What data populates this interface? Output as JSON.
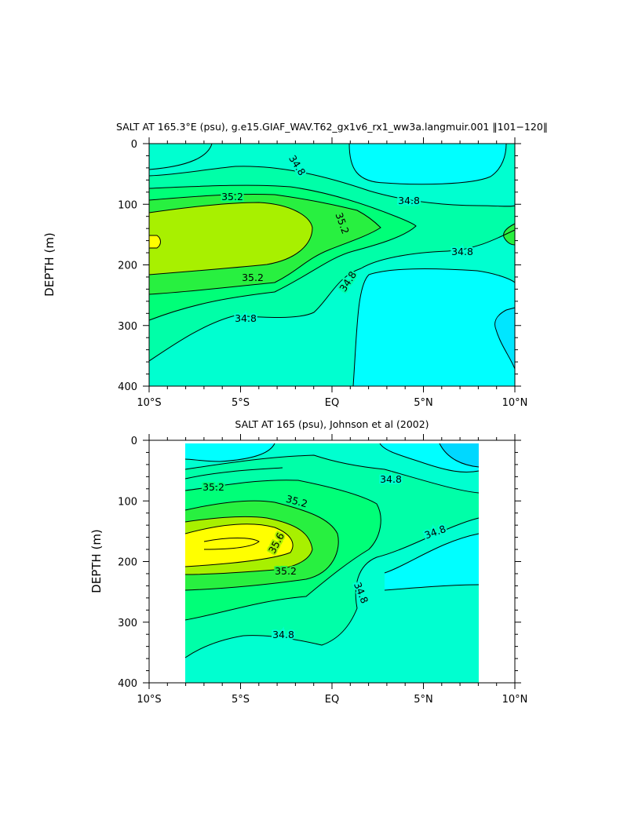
{
  "colors": {
    "s34_4": "#00ffff",
    "s34_6": "#00ffd0",
    "s34_8": "#00ffa8",
    "s35_0": "#00ff78",
    "s35_2": "#28f040",
    "s35_4": "#a8f000",
    "s35_6": "#ffff00",
    "s34_2": "#00d8ff",
    "s34_0": "#00e0ff",
    "line": "#000000"
  },
  "chart_data": [
    {
      "type": "contour",
      "title": "SALT AT 165.3°E (psu), g.e15.GIAF_WAV.T62_gx1v6_rx1_ww3a.langmuir.001 ‖101−120‖",
      "ylabel": "DEPTH (m)",
      "xlabel": "",
      "xlim": [
        -10,
        10
      ],
      "ylim": [
        400,
        0
      ],
      "xticks": [
        "10°S",
        "5°S",
        "EQ",
        "5°N",
        "10°N"
      ],
      "yticks": [
        "0",
        "100",
        "200",
        "300",
        "400"
      ],
      "contour_labels": [
        "34.8",
        "35.2",
        "35.2",
        "35.2",
        "34.8",
        "34.8",
        "34.8",
        "34.8"
      ],
      "levels": [
        34.4,
        34.6,
        34.8,
        35.0,
        35.2,
        35.4,
        35.6
      ],
      "grid": false
    },
    {
      "type": "contour",
      "title": "SALT AT 165 (psu), Johnson et al (2002)",
      "ylabel": "DEPTH (m)",
      "xlabel": "",
      "xlim": [
        -10,
        10
      ],
      "ylim": [
        400,
        0
      ],
      "data_xrange": [
        -8,
        8
      ],
      "xticks": [
        "10°S",
        "5°S",
        "EQ",
        "5°N",
        "10°N"
      ],
      "yticks": [
        "0",
        "100",
        "200",
        "300",
        "400"
      ],
      "contour_labels": [
        "34.8",
        "35.2",
        "35.2",
        "35.6",
        "35.2",
        "34.8",
        "34.8",
        "34.8"
      ],
      "levels": [
        34.2,
        34.4,
        34.6,
        34.8,
        35.0,
        35.2,
        35.4,
        35.6
      ],
      "grid": false
    }
  ]
}
